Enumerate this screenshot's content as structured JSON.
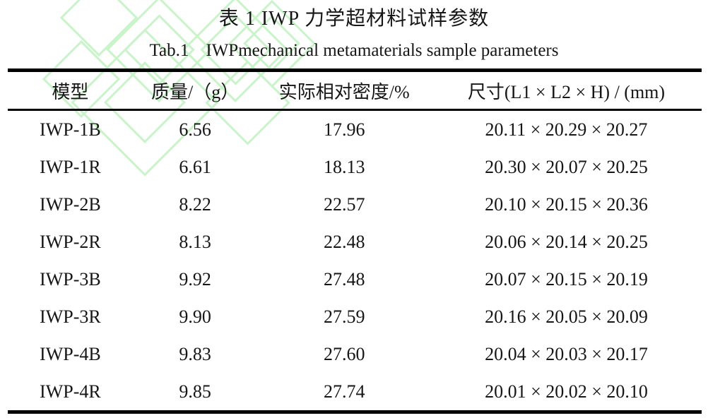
{
  "page": {
    "background_color": "#ffffff",
    "text_color": "#161616",
    "rule_color": "#000000",
    "watermark_color": "#c9f4c9"
  },
  "captions": {
    "zh": "表 1 IWP 力学超材料试样参数",
    "en_label": "Tab.1",
    "en_text": "IWPmechanical metamaterials sample parameters"
  },
  "table": {
    "columns": [
      "模型",
      "质量/（g）",
      "实际相对密度/%",
      "尺寸(L1 × L2 × H) / (mm)"
    ],
    "rows": [
      [
        "IWP-1B",
        "6.56",
        "17.96",
        "20.11 × 20.29 × 20.27"
      ],
      [
        "IWP-1R",
        "6.61",
        "18.13",
        "20.30 × 20.07 × 20.25"
      ],
      [
        "IWP-2B",
        "8.22",
        "22.57",
        "20.10 × 20.15 × 20.36"
      ],
      [
        "IWP-2R",
        "8.13",
        "22.48",
        "20.06 × 20.14 × 20.25"
      ],
      [
        "IWP-3B",
        "9.92",
        "27.48",
        "20.07 × 20.15 × 20.19"
      ],
      [
        "IWP-3R",
        "9.90",
        "27.59",
        "20.16 × 20.05 × 20.09"
      ],
      [
        "IWP-4B",
        "9.83",
        "27.60",
        "20.04 × 20.03 × 20.17"
      ],
      [
        "IWP-4R",
        "9.85",
        "27.74",
        "20.01 × 20.02 × 20.10"
      ]
    ]
  }
}
